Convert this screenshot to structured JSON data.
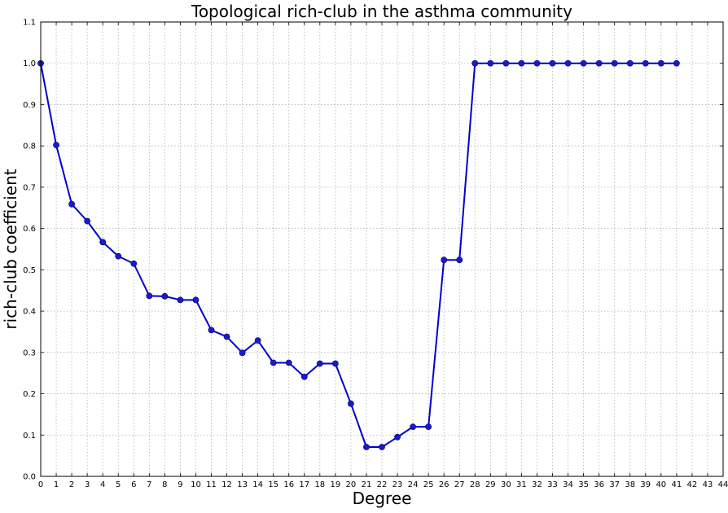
{
  "chart_data": {
    "type": "line",
    "title": "Topological rich-club in the asthma community",
    "xlabel": "Degree",
    "ylabel": "rich-club coefficient",
    "xlim": [
      0,
      44
    ],
    "ylim": [
      0.0,
      1.1
    ],
    "grid": true,
    "x_ticks": [
      "0",
      "1",
      "2",
      "3",
      "4",
      "5",
      "6",
      "7",
      "8",
      "9",
      "10",
      "11",
      "12",
      "13",
      "14",
      "15",
      "16",
      "17",
      "18",
      "19",
      "20",
      "21",
      "22",
      "23",
      "24",
      "25",
      "26",
      "27",
      "28",
      "29",
      "30",
      "31",
      "32",
      "33",
      "34",
      "35",
      "36",
      "37",
      "38",
      "39",
      "40",
      "41",
      "42",
      "43",
      "44"
    ],
    "y_ticks": [
      "0.0",
      "0.1",
      "0.2",
      "0.3",
      "0.4",
      "0.5",
      "0.6",
      "0.7",
      "0.8",
      "0.9",
      "1.0",
      "1.1"
    ],
    "colors": {
      "series": "#0000cc",
      "marker": "#1a1acc"
    },
    "series": [
      {
        "x": [
          0,
          1,
          2,
          3,
          4,
          5,
          6,
          7,
          8,
          9,
          10,
          11,
          12,
          13,
          14,
          15,
          16,
          17,
          18,
          19,
          20,
          21,
          22,
          23,
          24,
          25,
          26,
          27,
          28,
          29,
          30,
          31,
          32,
          33,
          34,
          35,
          36,
          37,
          38,
          39,
          40,
          41
        ],
        "values": [
          1.0,
          0.802,
          0.659,
          0.618,
          0.567,
          0.533,
          0.515,
          0.437,
          0.436,
          0.427,
          0.427,
          0.354,
          0.338,
          0.299,
          0.329,
          0.275,
          0.275,
          0.241,
          0.273,
          0.273,
          0.176,
          0.071,
          0.071,
          0.095,
          0.12,
          0.12,
          0.524,
          0.524,
          1.0,
          1.0,
          1.0,
          1.0,
          1.0,
          1.0,
          1.0,
          1.0,
          1.0,
          1.0,
          1.0,
          1.0,
          1.0,
          1.0
        ]
      }
    ]
  }
}
